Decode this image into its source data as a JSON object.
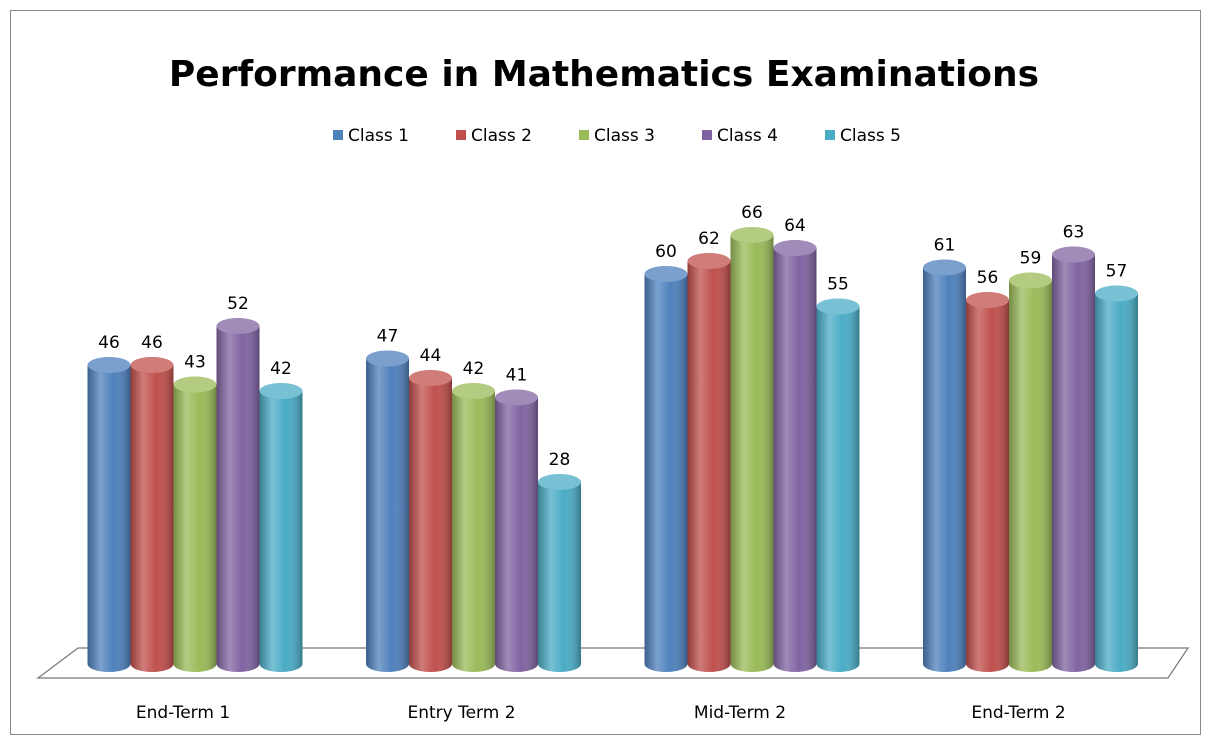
{
  "chart_data": {
    "type": "bar3d",
    "title": "Performance in Mathematics Examinations",
    "categories": [
      "End-Term 1",
      "Entry Term 2",
      "Mid-Term 2",
      "End-Term 2"
    ],
    "series": [
      {
        "name": "Class 1",
        "color": "#4f81bd",
        "values": [
          46,
          47,
          60,
          61
        ]
      },
      {
        "name": "Class 2",
        "color": "#c0504d",
        "values": [
          46,
          44,
          62,
          56
        ]
      },
      {
        "name": "Class 3",
        "color": "#9bbb59",
        "values": [
          43,
          42,
          66,
          59
        ]
      },
      {
        "name": "Class 4",
        "color": "#8064a2",
        "values": [
          52,
          41,
          64,
          63
        ]
      },
      {
        "name": "Class 5",
        "color": "#4bacc6",
        "values": [
          42,
          28,
          55,
          57
        ]
      }
    ],
    "legend": "top"
  }
}
